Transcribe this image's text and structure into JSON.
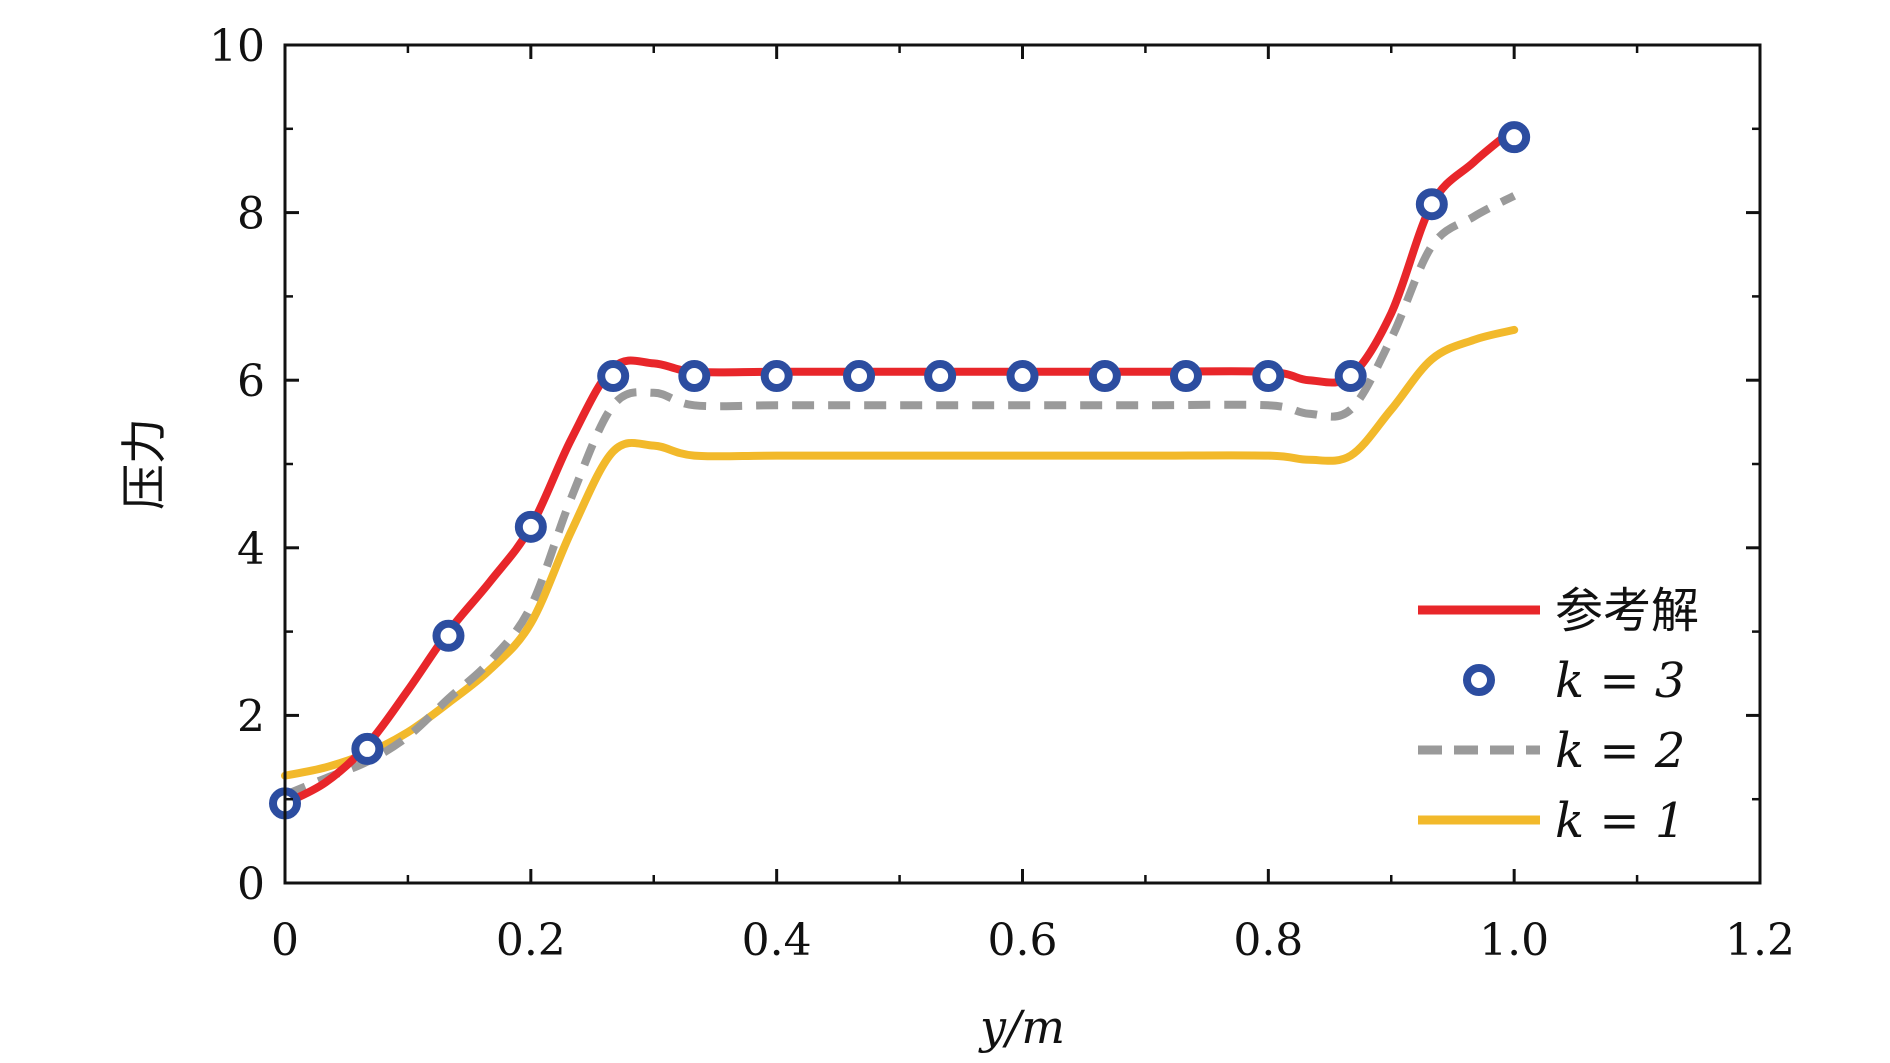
{
  "chart_data": {
    "type": "line",
    "title": "",
    "xlabel": "y/m",
    "ylabel": "压力",
    "xlim": [
      0,
      1.2
    ],
    "ylim": [
      0,
      10
    ],
    "xticks": [
      0,
      0.2,
      0.4,
      0.6,
      0.8,
      1.0,
      1.2
    ],
    "xtick_labels": [
      "0",
      "0.2",
      "0.4",
      "0.6",
      "0.8",
      "1.0",
      "1.2"
    ],
    "yticks": [
      0,
      2,
      4,
      6,
      8,
      10
    ],
    "ytick_labels": [
      "0",
      "2",
      "4",
      "6",
      "8",
      "10"
    ],
    "grid": false,
    "legend_position": "bottom-right",
    "series": [
      {
        "name": "参考解",
        "style": "solid-line",
        "color": "#e8262a",
        "x": [
          0,
          0.033,
          0.067,
          0.1,
          0.133,
          0.167,
          0.2,
          0.233,
          0.267,
          0.3,
          0.333,
          0.4,
          0.5,
          0.6,
          0.7,
          0.8,
          0.833,
          0.867,
          0.9,
          0.933,
          0.967,
          1.0
        ],
        "y": [
          0.95,
          1.2,
          1.65,
          2.3,
          3.0,
          3.6,
          4.25,
          5.3,
          6.15,
          6.2,
          6.1,
          6.1,
          6.1,
          6.1,
          6.1,
          6.1,
          6.0,
          6.05,
          6.8,
          8.1,
          8.6,
          9.0
        ]
      },
      {
        "name": "k = 3",
        "style": "circle-markers",
        "color": "#2c4da0",
        "x": [
          0,
          0.067,
          0.133,
          0.2,
          0.267,
          0.333,
          0.4,
          0.467,
          0.533,
          0.6,
          0.667,
          0.733,
          0.8,
          0.867,
          0.933,
          1.0
        ],
        "y": [
          0.95,
          1.6,
          2.95,
          4.25,
          6.05,
          6.05,
          6.05,
          6.05,
          6.05,
          6.05,
          6.05,
          6.05,
          6.05,
          6.05,
          8.1,
          8.9
        ]
      },
      {
        "name": "k = 2",
        "style": "dashed-line",
        "color": "#9a9a9a",
        "x": [
          0,
          0.033,
          0.067,
          0.1,
          0.133,
          0.167,
          0.2,
          0.233,
          0.267,
          0.3,
          0.333,
          0.4,
          0.5,
          0.6,
          0.7,
          0.8,
          0.833,
          0.867,
          0.9,
          0.933,
          0.967,
          1.0
        ],
        "y": [
          1.05,
          1.25,
          1.45,
          1.75,
          2.2,
          2.65,
          3.3,
          4.6,
          5.7,
          5.85,
          5.7,
          5.7,
          5.7,
          5.7,
          5.7,
          5.7,
          5.6,
          5.65,
          6.5,
          7.6,
          7.95,
          8.2
        ]
      },
      {
        "name": "k = 1",
        "style": "solid-line",
        "color": "#f2b92b",
        "x": [
          0,
          0.033,
          0.067,
          0.1,
          0.133,
          0.167,
          0.2,
          0.233,
          0.267,
          0.3,
          0.333,
          0.4,
          0.5,
          0.6,
          0.7,
          0.8,
          0.833,
          0.867,
          0.9,
          0.933,
          0.967,
          1.0
        ],
        "y": [
          1.28,
          1.38,
          1.55,
          1.8,
          2.15,
          2.55,
          3.1,
          4.2,
          5.15,
          5.22,
          5.1,
          5.1,
          5.1,
          5.1,
          5.1,
          5.1,
          5.05,
          5.1,
          5.65,
          6.25,
          6.48,
          6.6
        ]
      }
    ],
    "legend": [
      {
        "label": "参考解",
        "italic": false,
        "marker": "line",
        "color": "#e8262a"
      },
      {
        "label": "k = 3",
        "italic": true,
        "marker": "circle",
        "color": "#2c4da0"
      },
      {
        "label": "k = 2",
        "italic": true,
        "marker": "dashed",
        "color": "#9a9a9a"
      },
      {
        "label": "k = 1",
        "italic": true,
        "marker": "line",
        "color": "#f2b92b"
      }
    ]
  }
}
